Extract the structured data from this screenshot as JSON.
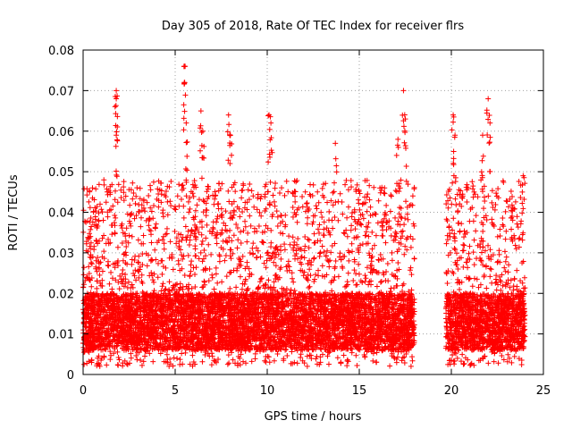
{
  "chart_data": {
    "type": "scatter",
    "title": "Day 305 of 2018, Rate Of TEC Index for receiver flrs",
    "xlabel": "GPS time / hours",
    "ylabel": "ROTI / TECUs",
    "xlim": [
      0,
      25
    ],
    "ylim": [
      0,
      0.08
    ],
    "xticks": [
      "0",
      "5",
      "10",
      "15",
      "20",
      "25"
    ],
    "yticks": [
      "0",
      "0.01",
      "0.02",
      "0.03",
      "0.04",
      "0.05",
      "0.06",
      "0.07",
      "0.08"
    ],
    "grid": true,
    "marker": "+",
    "color": "#ff0000",
    "data_segments": [
      {
        "x_start": 0.0,
        "x_end": 18.0,
        "density": 400
      },
      {
        "x_start": 19.7,
        "x_end": 24.0,
        "density": 400
      }
    ],
    "typical_range": [
      0.002,
      0.035
    ],
    "notable_peaks": [
      {
        "x": 1.8,
        "y": 0.07
      },
      {
        "x": 1.8,
        "y": 0.068
      },
      {
        "x": 1.8,
        "y": 0.059
      },
      {
        "x": 5.5,
        "y": 0.076
      },
      {
        "x": 5.5,
        "y": 0.072
      },
      {
        "x": 5.6,
        "y": 0.062
      },
      {
        "x": 6.4,
        "y": 0.065
      },
      {
        "x": 6.5,
        "y": 0.06
      },
      {
        "x": 7.9,
        "y": 0.064
      },
      {
        "x": 8.0,
        "y": 0.059
      },
      {
        "x": 10.1,
        "y": 0.064
      },
      {
        "x": 10.2,
        "y": 0.062
      },
      {
        "x": 13.7,
        "y": 0.057
      },
      {
        "x": 17.1,
        "y": 0.058
      },
      {
        "x": 17.4,
        "y": 0.07
      },
      {
        "x": 17.5,
        "y": 0.063
      },
      {
        "x": 20.1,
        "y": 0.064
      },
      {
        "x": 20.2,
        "y": 0.059
      },
      {
        "x": 22.0,
        "y": 0.068
      },
      {
        "x": 22.1,
        "y": 0.062
      },
      {
        "x": 21.7,
        "y": 0.059
      },
      {
        "x": 23.9,
        "y": 0.049
      }
    ]
  }
}
